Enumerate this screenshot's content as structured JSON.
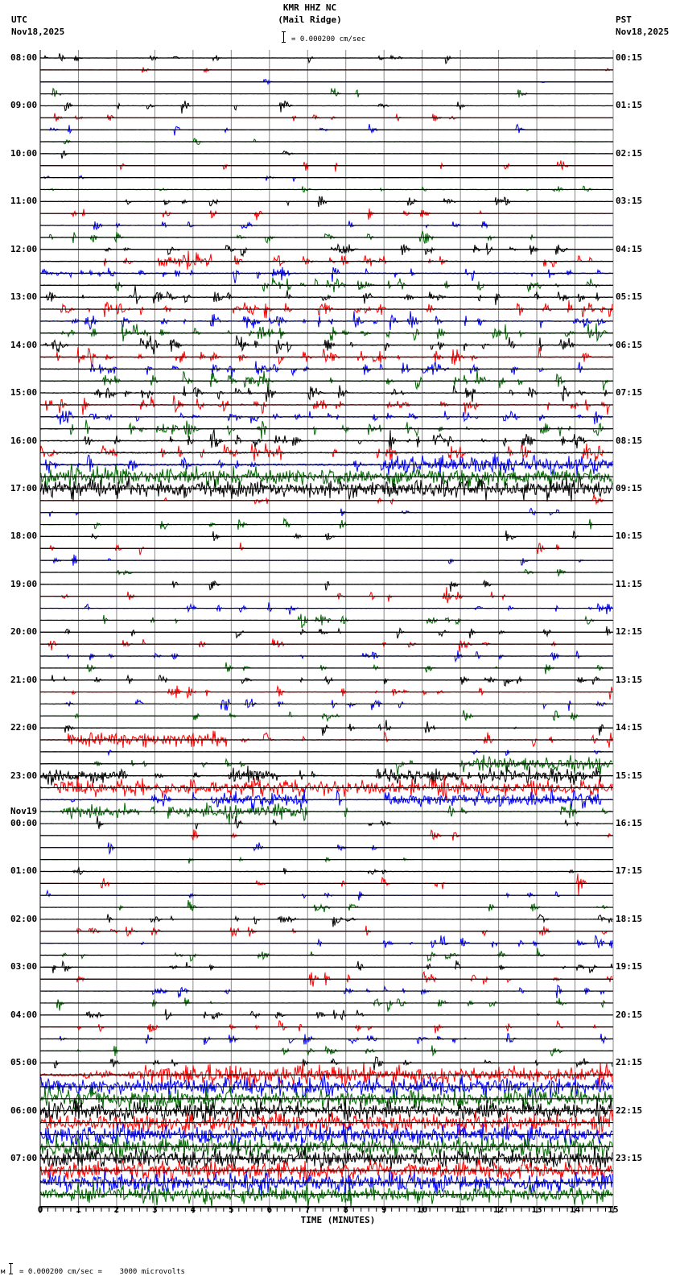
{
  "header": {
    "title_line1": "KMR HHZ NC",
    "title_line2": "(Mail Ridge)",
    "left_tz": "UTC",
    "left_date": "Nov18,2025",
    "right_tz": "PST",
    "right_date": "Nov18,2025",
    "scale_text": "= 0.000200 cm/sec"
  },
  "footer": {
    "xlabel": "TIME (MINUTES)",
    "scale_prefix": "м",
    "scale_text": "= 0.000200 cm/sec =    3000 microvolts"
  },
  "colors": {
    "trace_cycle": [
      "#000000",
      "#ff0000",
      "#0000ff",
      "#006a00"
    ],
    "grid_line": "#000000",
    "minute_line": "#888888"
  },
  "chart_data": {
    "type": "line",
    "title": "KMR HHZ NC (Mail Ridge) helicorder",
    "xlabel": "TIME (MINUTES)",
    "ylabel": "",
    "xlim": [
      0,
      15
    ],
    "x_ticks": [
      0,
      1,
      2,
      3,
      4,
      5,
      6,
      7,
      8,
      9,
      10,
      11,
      12,
      13,
      14,
      15
    ],
    "minor_tick_step": 0.2,
    "rows_per_hour": 4,
    "row_minutes": 15,
    "left_labels": [
      {
        "row": 0,
        "text": "08:00"
      },
      {
        "row": 4,
        "text": "09:00"
      },
      {
        "row": 8,
        "text": "10:00"
      },
      {
        "row": 12,
        "text": "11:00"
      },
      {
        "row": 16,
        "text": "12:00"
      },
      {
        "row": 20,
        "text": "13:00"
      },
      {
        "row": 24,
        "text": "14:00"
      },
      {
        "row": 28,
        "text": "15:00"
      },
      {
        "row": 32,
        "text": "16:00"
      },
      {
        "row": 36,
        "text": "17:00"
      },
      {
        "row": 40,
        "text": "18:00"
      },
      {
        "row": 44,
        "text": "19:00"
      },
      {
        "row": 48,
        "text": "20:00"
      },
      {
        "row": 52,
        "text": "21:00"
      },
      {
        "row": 56,
        "text": "22:00"
      },
      {
        "row": 60,
        "text": "23:00"
      },
      {
        "row": 64,
        "text": "00:00",
        "date": "Nov19"
      },
      {
        "row": 68,
        "text": "01:00"
      },
      {
        "row": 72,
        "text": "02:00"
      },
      {
        "row": 76,
        "text": "03:00"
      },
      {
        "row": 80,
        "text": "04:00"
      },
      {
        "row": 84,
        "text": "05:00"
      },
      {
        "row": 88,
        "text": "06:00"
      },
      {
        "row": 92,
        "text": "07:00"
      }
    ],
    "right_labels": [
      {
        "row": 0,
        "text": "00:15"
      },
      {
        "row": 4,
        "text": "01:15"
      },
      {
        "row": 8,
        "text": "02:15"
      },
      {
        "row": 12,
        "text": "03:15"
      },
      {
        "row": 16,
        "text": "04:15"
      },
      {
        "row": 20,
        "text": "05:15"
      },
      {
        "row": 24,
        "text": "06:15"
      },
      {
        "row": 28,
        "text": "07:15"
      },
      {
        "row": 32,
        "text": "08:15"
      },
      {
        "row": 36,
        "text": "09:15"
      },
      {
        "row": 40,
        "text": "10:15"
      },
      {
        "row": 44,
        "text": "11:15"
      },
      {
        "row": 48,
        "text": "12:15"
      },
      {
        "row": 52,
        "text": "13:15"
      },
      {
        "row": 56,
        "text": "14:15"
      },
      {
        "row": 60,
        "text": "15:15"
      },
      {
        "row": 64,
        "text": "16:15"
      },
      {
        "row": 68,
        "text": "17:15"
      },
      {
        "row": 72,
        "text": "18:15"
      },
      {
        "row": 76,
        "text": "19:15"
      },
      {
        "row": 80,
        "text": "20:15"
      },
      {
        "row": 84,
        "text": "21:15"
      },
      {
        "row": 88,
        "text": "22:15"
      },
      {
        "row": 92,
        "text": "23:15"
      }
    ],
    "row_activity_note": "per-row activity: events = approx count of discrete spike bursts, noise = continuous noise amplitude (px), bursts = [start_min, end_min] dense segments",
    "rows": [
      {
        "r": 0,
        "events": 12,
        "amp": 6,
        "noise": 0.2
      },
      {
        "r": 1,
        "events": 3,
        "amp": 7,
        "noise": 0.2
      },
      {
        "r": 2,
        "events": 2,
        "amp": 6,
        "noise": 0.2
      },
      {
        "r": 3,
        "events": 4,
        "amp": 10,
        "noise": 0.2
      },
      {
        "r": 4,
        "events": 9,
        "amp": 9,
        "noise": 0.2
      },
      {
        "r": 5,
        "events": 9,
        "amp": 6,
        "noise": 0.2
      },
      {
        "r": 6,
        "events": 7,
        "amp": 8,
        "noise": 0.2
      },
      {
        "r": 7,
        "events": 3,
        "amp": 7,
        "noise": 0.2
      },
      {
        "r": 8,
        "events": 2,
        "amp": 9,
        "noise": 0.2
      },
      {
        "r": 9,
        "events": 7,
        "amp": 10,
        "noise": 0.2
      },
      {
        "r": 10,
        "events": 4,
        "amp": 8,
        "noise": 0.2
      },
      {
        "r": 11,
        "events": 10,
        "amp": 5,
        "noise": 0.3
      },
      {
        "r": 12,
        "events": 12,
        "amp": 8,
        "noise": 0.3
      },
      {
        "r": 13,
        "events": 9,
        "amp": 9,
        "noise": 0.3
      },
      {
        "r": 14,
        "events": 10,
        "amp": 9,
        "noise": 0.3
      },
      {
        "r": 15,
        "events": 13,
        "amp": 9,
        "noise": 0.3
      },
      {
        "r": 16,
        "events": 20,
        "amp": 10,
        "noise": 0.3
      },
      {
        "r": 17,
        "events": 26,
        "amp": 11,
        "noise": 0.5,
        "bursts": [
          [
            3.1,
            4.5
          ]
        ]
      },
      {
        "r": 18,
        "events": 28,
        "amp": 10,
        "noise": 0.5
      },
      {
        "r": 19,
        "events": 28,
        "amp": 10,
        "noise": 0.5
      },
      {
        "r": 20,
        "events": 30,
        "amp": 11,
        "noise": 0.5
      },
      {
        "r": 21,
        "events": 30,
        "amp": 11,
        "noise": 0.5
      },
      {
        "r": 22,
        "events": 30,
        "amp": 11,
        "noise": 0.5
      },
      {
        "r": 23,
        "events": 30,
        "amp": 11,
        "noise": 0.5
      },
      {
        "r": 24,
        "events": 30,
        "amp": 11,
        "noise": 0.5
      },
      {
        "r": 25,
        "events": 30,
        "amp": 11,
        "noise": 0.5
      },
      {
        "r": 26,
        "events": 30,
        "amp": 11,
        "noise": 0.5
      },
      {
        "r": 27,
        "events": 30,
        "amp": 11,
        "noise": 0.5
      },
      {
        "r": 28,
        "events": 30,
        "amp": 11,
        "noise": 0.5
      },
      {
        "r": 29,
        "events": 30,
        "amp": 11,
        "noise": 0.5
      },
      {
        "r": 30,
        "events": 30,
        "amp": 11,
        "noise": 0.5
      },
      {
        "r": 31,
        "events": 30,
        "amp": 11,
        "noise": 0.5
      },
      {
        "r": 32,
        "events": 30,
        "amp": 11,
        "noise": 0.5
      },
      {
        "r": 33,
        "events": 28,
        "amp": 12,
        "noise": 1
      },
      {
        "r": 34,
        "events": 30,
        "amp": 12,
        "noise": 1,
        "bursts": [
          [
            9,
            15
          ]
        ]
      },
      {
        "r": 35,
        "events": 30,
        "amp": 12,
        "noise": 2,
        "bursts": [
          [
            0,
            15
          ]
        ]
      },
      {
        "r": 36,
        "events": 30,
        "amp": 12,
        "noise": 3,
        "bursts": [
          [
            0,
            15
          ]
        ]
      },
      {
        "r": 37,
        "events": 6,
        "amp": 8,
        "noise": 0.2
      },
      {
        "r": 38,
        "events": 7,
        "amp": 8,
        "noise": 0.2
      },
      {
        "r": 39,
        "events": 8,
        "amp": 9,
        "noise": 0.2
      },
      {
        "r": 40,
        "events": 8,
        "amp": 9,
        "noise": 0.2
      },
      {
        "r": 41,
        "events": 6,
        "amp": 8,
        "noise": 0.2
      },
      {
        "r": 42,
        "events": 6,
        "amp": 8,
        "noise": 0.2
      },
      {
        "r": 43,
        "events": 5,
        "amp": 6,
        "noise": 0.2
      },
      {
        "r": 44,
        "events": 5,
        "amp": 9,
        "noise": 0.2
      },
      {
        "r": 45,
        "events": 10,
        "amp": 8,
        "noise": 0.2
      },
      {
        "r": 46,
        "events": 14,
        "amp": 9,
        "noise": 0.2
      },
      {
        "r": 47,
        "events": 14,
        "amp": 9,
        "noise": 0.2
      },
      {
        "r": 48,
        "events": 14,
        "amp": 9,
        "noise": 0.2
      },
      {
        "r": 49,
        "events": 14,
        "amp": 9,
        "noise": 0.2
      },
      {
        "r": 50,
        "events": 14,
        "amp": 9,
        "noise": 0.2
      },
      {
        "r": 51,
        "events": 10,
        "amp": 8,
        "noise": 0.2
      },
      {
        "r": 52,
        "events": 16,
        "amp": 9,
        "noise": 0.3
      },
      {
        "r": 53,
        "events": 16,
        "amp": 9,
        "noise": 0.3
      },
      {
        "r": 54,
        "events": 14,
        "amp": 9,
        "noise": 0.3
      },
      {
        "r": 55,
        "events": 10,
        "amp": 8,
        "noise": 0.2
      },
      {
        "r": 56,
        "events": 10,
        "amp": 10,
        "noise": 0.3
      },
      {
        "r": 57,
        "events": 16,
        "amp": 10,
        "noise": 0.5,
        "bursts": [
          [
            1,
            4.9
          ]
        ]
      },
      {
        "r": 58,
        "events": 4,
        "amp": 6,
        "noise": 0.2
      },
      {
        "r": 59,
        "events": 14,
        "amp": 10,
        "noise": 0.4,
        "bursts": [
          [
            11,
            15
          ]
        ]
      },
      {
        "r": 60,
        "events": 20,
        "amp": 10,
        "noise": 0.4,
        "bursts": [
          [
            0,
            2.3
          ],
          [
            5,
            6
          ],
          [
            9,
            11
          ],
          [
            11.5,
            14.7
          ]
        ]
      },
      {
        "r": 61,
        "events": 24,
        "amp": 11,
        "noise": 1,
        "bursts": [
          [
            0.4,
            15
          ]
        ]
      },
      {
        "r": 62,
        "events": 18,
        "amp": 11,
        "noise": 0.5,
        "bursts": [
          [
            4.5,
            7
          ],
          [
            9,
            14.7
          ]
        ]
      },
      {
        "r": 63,
        "events": 14,
        "amp": 10,
        "noise": 0.5,
        "bursts": [
          [
            0.6,
            2.6
          ],
          [
            3.4,
            7
          ]
        ]
      },
      {
        "r": 64,
        "events": 8,
        "amp": 9,
        "noise": 0.2
      },
      {
        "r": 65,
        "events": 6,
        "amp": 8,
        "noise": 0.2
      },
      {
        "r": 66,
        "events": 5,
        "amp": 8,
        "noise": 0.2
      },
      {
        "r": 67,
        "events": 4,
        "amp": 8,
        "noise": 0.2
      },
      {
        "r": 68,
        "events": 6,
        "amp": 8,
        "noise": 0.2
      },
      {
        "r": 69,
        "events": 8,
        "amp": 9,
        "noise": 0.2
      },
      {
        "r": 70,
        "events": 8,
        "amp": 9,
        "noise": 0.2
      },
      {
        "r": 71,
        "events": 10,
        "amp": 8,
        "noise": 0.2
      },
      {
        "r": 72,
        "events": 14,
        "amp": 9,
        "noise": 0.2
      },
      {
        "r": 73,
        "events": 14,
        "amp": 9,
        "noise": 0.2
      },
      {
        "r": 74,
        "events": 14,
        "amp": 9,
        "noise": 0.2
      },
      {
        "r": 75,
        "events": 12,
        "amp": 9,
        "noise": 0.2
      },
      {
        "r": 76,
        "events": 14,
        "amp": 9,
        "noise": 0.2
      },
      {
        "r": 77,
        "events": 14,
        "amp": 9,
        "noise": 0.2
      },
      {
        "r": 78,
        "events": 14,
        "amp": 9,
        "noise": 0.2
      },
      {
        "r": 79,
        "events": 14,
        "amp": 9,
        "noise": 0.2
      },
      {
        "r": 80,
        "events": 16,
        "amp": 9,
        "noise": 0.2
      },
      {
        "r": 81,
        "events": 14,
        "amp": 9,
        "noise": 0.2
      },
      {
        "r": 82,
        "events": 14,
        "amp": 9,
        "noise": 0.2
      },
      {
        "r": 83,
        "events": 10,
        "amp": 8,
        "noise": 0.2
      },
      {
        "r": 84,
        "events": 14,
        "amp": 9,
        "noise": 0.3
      },
      {
        "r": 85,
        "events": 30,
        "amp": 12,
        "noise": 1.5,
        "bursts": [
          [
            2.3,
            15
          ]
        ]
      },
      {
        "r": 86,
        "events": 30,
        "amp": 12,
        "noise": 2,
        "bursts": [
          [
            0,
            15
          ]
        ]
      },
      {
        "r": 87,
        "events": 30,
        "amp": 12,
        "noise": 2,
        "bursts": [
          [
            0,
            15
          ]
        ]
      },
      {
        "r": 88,
        "events": 30,
        "amp": 12,
        "noise": 2.5,
        "bursts": [
          [
            0,
            15
          ]
        ]
      },
      {
        "r": 89,
        "events": 30,
        "amp": 12,
        "noise": 2.5,
        "bursts": [
          [
            0,
            15
          ]
        ]
      },
      {
        "r": 90,
        "events": 30,
        "amp": 12,
        "noise": 2.5,
        "bursts": [
          [
            0,
            15
          ]
        ]
      },
      {
        "r": 91,
        "events": 30,
        "amp": 12,
        "noise": 2.5,
        "bursts": [
          [
            0,
            15
          ]
        ]
      },
      {
        "r": 92,
        "events": 30,
        "amp": 12,
        "noise": 2.5,
        "bursts": [
          [
            0,
            15
          ]
        ]
      },
      {
        "r": 93,
        "events": 30,
        "amp": 12,
        "noise": 2.5,
        "bursts": [
          [
            0,
            15
          ]
        ]
      },
      {
        "r": 94,
        "events": 30,
        "amp": 12,
        "noise": 2.5,
        "bursts": [
          [
            0,
            15
          ]
        ]
      },
      {
        "r": 95,
        "events": 30,
        "amp": 12,
        "noise": 2.5,
        "bursts": [
          [
            0,
            15
          ]
        ]
      }
    ]
  }
}
